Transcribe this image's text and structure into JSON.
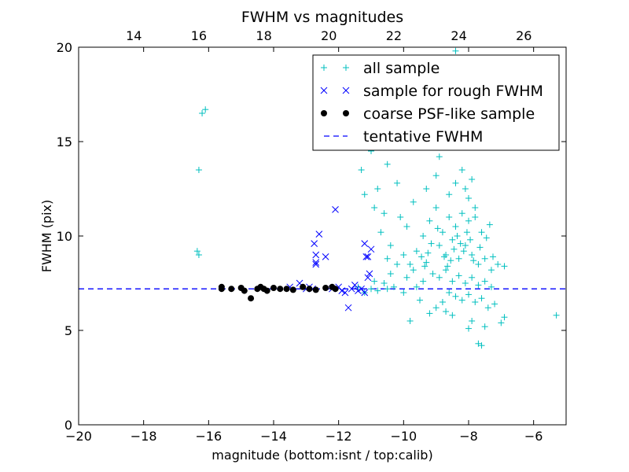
{
  "chart_data": {
    "type": "scatter",
    "title": "FWHM vs magnitudes",
    "xlabel": "magnitude (bottom:isnt / top:calib)",
    "ylabel": "FWHM (pix)",
    "xlim": [
      -20,
      -5
    ],
    "ylim": [
      0,
      20
    ],
    "x_ticks": [
      "−20",
      "−18",
      "−16",
      "−14",
      "−12",
      "−10",
      "−8",
      "−6"
    ],
    "y_ticks": [
      "0",
      "5",
      "10",
      "15",
      "20"
    ],
    "top_xlim": [
      12.3,
      27.3
    ],
    "top_ticks": [
      "14",
      "16",
      "18",
      "20",
      "22",
      "24",
      "26"
    ],
    "grid": false,
    "legend_position": "top-right",
    "colors": {
      "all": "#00bfbf",
      "rough": "#0000ff",
      "coarse": "#000000",
      "tentative": "#0000ff"
    },
    "tentative_fwhm": 7.2,
    "series": [
      {
        "name": "all sample",
        "marker": "plus",
        "points": [
          [
            -16.2,
            16.5
          ],
          [
            -16.1,
            16.7
          ],
          [
            -16.3,
            13.5
          ],
          [
            -16.35,
            9.2
          ],
          [
            -16.3,
            9.0
          ],
          [
            -11.0,
            14.5
          ],
          [
            -10.5,
            13.8
          ],
          [
            -10.3,
            16.0
          ],
          [
            -10.0,
            15.5
          ],
          [
            -9.5,
            17.5
          ],
          [
            -9.0,
            18.5
          ],
          [
            -8.7,
            19.0
          ],
          [
            -8.4,
            19.8
          ],
          [
            -10.8,
            12.5
          ],
          [
            -10.2,
            12.8
          ],
          [
            -10.9,
            11.5
          ],
          [
            -10.6,
            11.2
          ],
          [
            -10.1,
            11.0
          ],
          [
            -9.9,
            10.5
          ],
          [
            -9.7,
            11.8
          ],
          [
            -9.3,
            12.5
          ],
          [
            -9.0,
            13.2
          ],
          [
            -8.9,
            14.2
          ],
          [
            -8.7,
            15.2
          ],
          [
            -8.5,
            14.8
          ],
          [
            -8.3,
            16.2
          ],
          [
            -8.1,
            12.5
          ],
          [
            -7.9,
            13.0
          ],
          [
            -11.3,
            13.5
          ],
          [
            -11.2,
            12.2
          ],
          [
            -10.7,
            10.2
          ],
          [
            -10.4,
            9.5
          ],
          [
            -10.0,
            9.0
          ],
          [
            -9.8,
            8.5
          ],
          [
            -9.6,
            9.2
          ],
          [
            -9.4,
            10.0
          ],
          [
            -9.2,
            10.8
          ],
          [
            -9.0,
            11.5
          ],
          [
            -8.8,
            10.2
          ],
          [
            -8.6,
            11.0
          ],
          [
            -8.4,
            10.5
          ],
          [
            -8.2,
            11.2
          ],
          [
            -8.0,
            10.8
          ],
          [
            -7.8,
            11.5
          ],
          [
            -7.6,
            10.2
          ],
          [
            -8.9,
            9.5
          ],
          [
            -8.7,
            9.0
          ],
          [
            -8.5,
            9.8
          ],
          [
            -8.3,
            8.8
          ],
          [
            -8.1,
            9.5
          ],
          [
            -7.9,
            9.0
          ],
          [
            -7.7,
            8.5
          ],
          [
            -7.5,
            8.8
          ],
          [
            -7.3,
            8.2
          ],
          [
            -7.1,
            8.5
          ],
          [
            -9.1,
            8.0
          ],
          [
            -8.9,
            7.8
          ],
          [
            -8.7,
            8.2
          ],
          [
            -8.5,
            7.6
          ],
          [
            -8.3,
            7.9
          ],
          [
            -8.1,
            7.5
          ],
          [
            -7.9,
            7.8
          ],
          [
            -7.7,
            7.4
          ],
          [
            -7.5,
            7.6
          ],
          [
            -7.3,
            7.3
          ],
          [
            -8.6,
            7.0
          ],
          [
            -8.4,
            6.8
          ],
          [
            -8.2,
            6.6
          ],
          [
            -8.0,
            6.9
          ],
          [
            -7.8,
            6.5
          ],
          [
            -7.6,
            6.7
          ],
          [
            -7.4,
            6.2
          ],
          [
            -7.2,
            6.4
          ],
          [
            -8.8,
            6.5
          ],
          [
            -9.0,
            6.2
          ],
          [
            -8.7,
            6.0
          ],
          [
            -8.5,
            5.8
          ],
          [
            -7.9,
            5.5
          ],
          [
            -7.5,
            5.2
          ],
          [
            -8.0,
            5.1
          ],
          [
            -7.7,
            4.3
          ],
          [
            -7.6,
            4.2
          ],
          [
            -7.0,
            5.4
          ],
          [
            -6.9,
            5.7
          ],
          [
            -6.9,
            8.4
          ],
          [
            -5.3,
            5.8
          ],
          [
            -9.8,
            5.5
          ],
          [
            -9.2,
            5.9
          ],
          [
            -9.5,
            6.6
          ],
          [
            -10.0,
            7.0
          ],
          [
            -10.5,
            7.2
          ],
          [
            -10.8,
            7.1
          ],
          [
            -11.0,
            7.2
          ],
          [
            -10.6,
            7.5
          ],
          [
            -10.3,
            7.3
          ],
          [
            -11.2,
            7.0
          ],
          [
            -11.4,
            7.3
          ],
          [
            -10.9,
            7.6
          ],
          [
            -10.4,
            8.0
          ],
          [
            -9.9,
            7.8
          ],
          [
            -10.2,
            8.5
          ],
          [
            -10.5,
            8.8
          ],
          [
            -9.7,
            8.2
          ],
          [
            -9.4,
            7.6
          ],
          [
            -9.3,
            8.6
          ],
          [
            -9.6,
            7.3
          ],
          [
            -8.6,
            12.2
          ],
          [
            -8.4,
            12.8
          ],
          [
            -8.2,
            13.5
          ],
          [
            -8.0,
            12.0
          ],
          [
            -7.8,
            11.0
          ],
          [
            -8.35,
            10.0
          ],
          [
            -8.25,
            9.6
          ],
          [
            -8.15,
            9.2
          ],
          [
            -8.05,
            10.2
          ],
          [
            -7.95,
            9.8
          ],
          [
            -8.45,
            9.3
          ],
          [
            -8.55,
            8.7
          ],
          [
            -8.65,
            8.4
          ],
          [
            -8.75,
            8.9
          ],
          [
            -7.85,
            8.7
          ],
          [
            -7.65,
            9.4
          ],
          [
            -7.45,
            9.9
          ],
          [
            -7.35,
            10.6
          ],
          [
            -7.25,
            8.9
          ],
          [
            -9.15,
            9.6
          ],
          [
            -9.25,
            9.1
          ],
          [
            -9.35,
            8.4
          ],
          [
            -9.45,
            8.9
          ],
          [
            -8.95,
            10.4
          ]
        ]
      },
      {
        "name": "sample for rough FWHM",
        "marker": "x",
        "points": [
          [
            -13.5,
            7.3
          ],
          [
            -13.2,
            7.5
          ],
          [
            -13.0,
            7.2
          ],
          [
            -12.9,
            7.3
          ],
          [
            -12.8,
            7.2
          ],
          [
            -12.7,
            9.0
          ],
          [
            -12.75,
            9.6
          ],
          [
            -12.7,
            8.6
          ],
          [
            -12.6,
            10.1
          ],
          [
            -12.7,
            8.5
          ],
          [
            -12.4,
            8.9
          ],
          [
            -12.2,
            7.2
          ],
          [
            -12.1,
            11.4
          ],
          [
            -12.0,
            7.3
          ],
          [
            -11.9,
            7.1
          ],
          [
            -11.8,
            7.0
          ],
          [
            -11.7,
            6.2
          ],
          [
            -11.6,
            7.2
          ],
          [
            -11.5,
            7.4
          ],
          [
            -11.3,
            7.2
          ],
          [
            -11.2,
            9.6
          ],
          [
            -11.1,
            8.9
          ],
          [
            -11.0,
            9.3
          ],
          [
            -11.05,
            8.0
          ],
          [
            -11.1,
            7.8
          ],
          [
            -11.2,
            7.0
          ],
          [
            -11.4,
            7.1
          ],
          [
            -11.15,
            8.9
          ]
        ]
      },
      {
        "name": "coarse PSF-like sample",
        "marker": "dot",
        "points": [
          [
            -15.6,
            7.3
          ],
          [
            -15.6,
            7.2
          ],
          [
            -15.3,
            7.2
          ],
          [
            -15.0,
            7.25
          ],
          [
            -14.9,
            7.1
          ],
          [
            -14.7,
            6.7
          ],
          [
            -14.5,
            7.2
          ],
          [
            -14.4,
            7.3
          ],
          [
            -14.3,
            7.2
          ],
          [
            -14.2,
            7.1
          ],
          [
            -14.0,
            7.25
          ],
          [
            -13.8,
            7.2
          ],
          [
            -13.6,
            7.2
          ],
          [
            -13.4,
            7.15
          ],
          [
            -13.1,
            7.3
          ],
          [
            -12.9,
            7.2
          ],
          [
            -12.7,
            7.15
          ],
          [
            -12.4,
            7.25
          ],
          [
            -12.2,
            7.3
          ],
          [
            -12.1,
            7.2
          ]
        ]
      },
      {
        "name": "tentative FWHM",
        "marker": "dashed-line"
      }
    ]
  }
}
